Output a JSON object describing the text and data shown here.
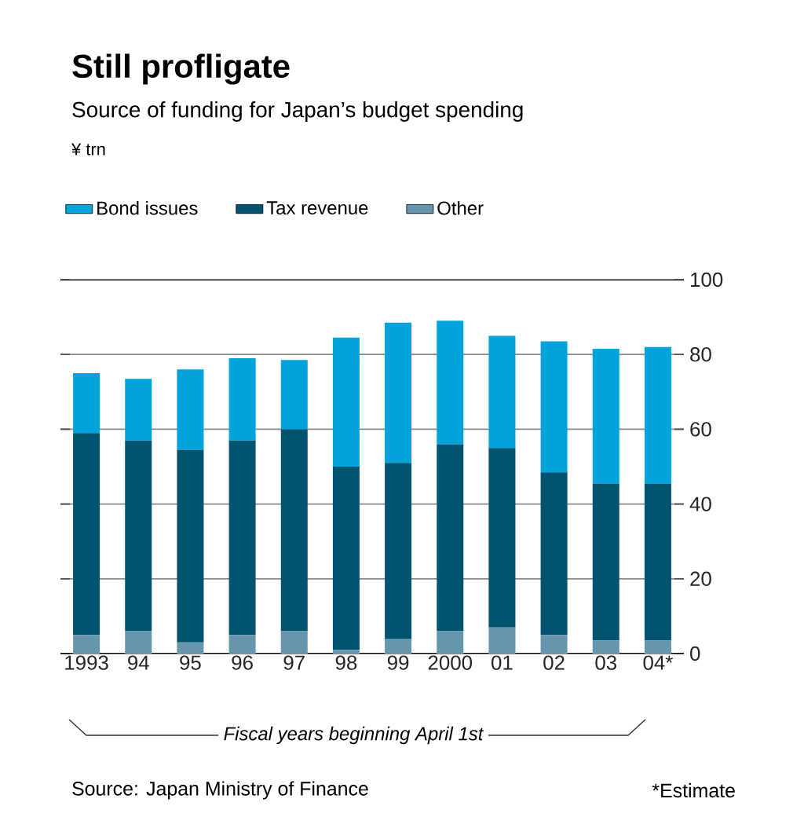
{
  "chart_data": {
    "type": "bar",
    "title": "Still profligate",
    "subtitle": "Source of funding for Japan’s budget spending",
    "categories": [
      "1993",
      "94",
      "95",
      "96",
      "97",
      "98",
      "99",
      "2000",
      "01",
      "02",
      "03",
      "04*"
    ],
    "stacked": true,
    "series": [
      {
        "name": "Other",
        "color": "#6596ad",
        "values": [
          5,
          6,
          3,
          5,
          6,
          1,
          4,
          6,
          7,
          5,
          3.5,
          3.5
        ]
      },
      {
        "name": "Tax revenue",
        "color": "#005470",
        "values": [
          54,
          51,
          51.5,
          52,
          54,
          49,
          47,
          50,
          48,
          43.5,
          42,
          42
        ]
      },
      {
        "name": "Bond issues",
        "color": "#00a3dc",
        "values": [
          16,
          16.5,
          21.5,
          22,
          18.5,
          34.5,
          37.5,
          33,
          30,
          35,
          36,
          36.5
        ]
      }
    ],
    "ylim": [
      0,
      100
    ],
    "yticks": [
      0,
      20,
      40,
      60,
      80,
      100
    ],
    "grid": "y",
    "legend": "top",
    "annotations": [
      "¥ trn",
      "Fiscal years beginning April 1st",
      "Source: Japan Ministry of Finance",
      "*Estimate"
    ]
  }
}
